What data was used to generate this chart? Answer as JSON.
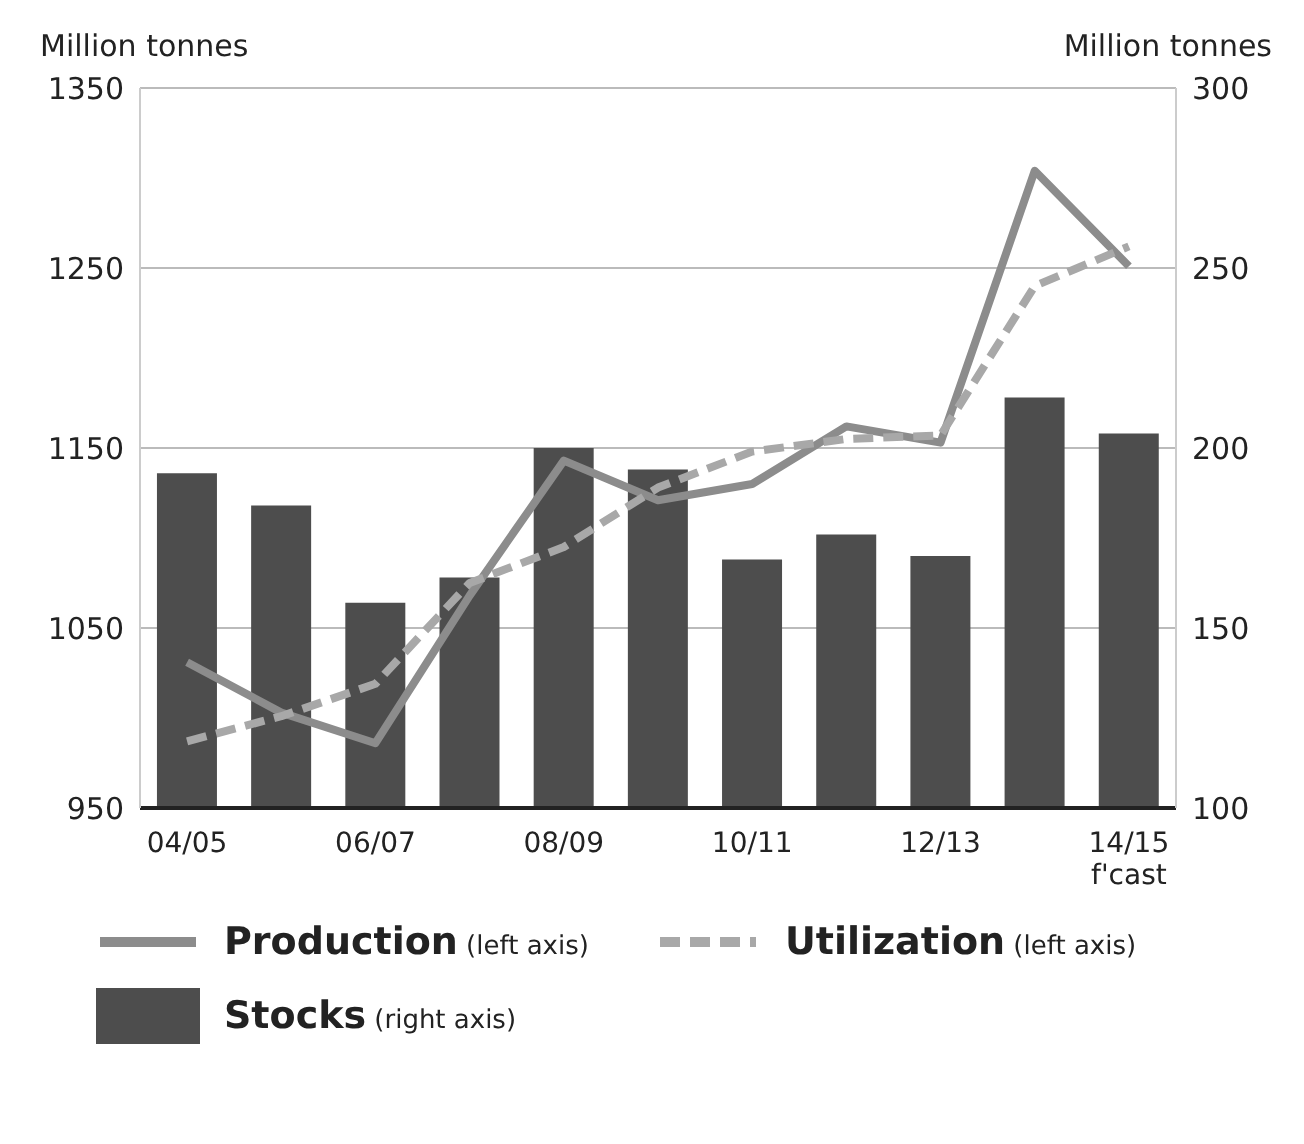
{
  "chart_data": {
    "type": "bar",
    "ylabel": "Million tonnes",
    "y2label": "Million tonnes",
    "categories": [
      "04/05",
      null,
      "06/07",
      null,
      "08/09",
      null,
      "10/11",
      null,
      "12/13",
      null,
      "14/15\nf'cast"
    ],
    "series": [
      {
        "name": "Production (left axis)",
        "type": "line",
        "axis": "y",
        "color": "#8c8c8c",
        "line_style": "solid",
        "values": [
          1031,
          1003,
          986,
          1068,
          1143,
          1121,
          1130,
          1162,
          1153,
          1304,
          1251
        ]
      },
      {
        "name": "Utilization (left axis)",
        "type": "line",
        "axis": "y",
        "color": "#a8a8a8",
        "line_style": "dashed",
        "values": [
          987,
          1001,
          1019,
          1075,
          1095,
          1128,
          1148,
          1155,
          1157,
          1240,
          1262
        ]
      },
      {
        "name": "Stocks (right axis)",
        "axis": "y2",
        "color": "#4d4d4d",
        "values": [
          193,
          184,
          157,
          164,
          200,
          194,
          169,
          176,
          170,
          214,
          204
        ]
      }
    ],
    "ylim": [
      950,
      1350
    ],
    "yticks": [
      950,
      1050,
      1150,
      1250,
      1350
    ],
    "y2lim": [
      100,
      300
    ],
    "y2ticks": [
      100,
      150,
      200,
      250,
      300
    ],
    "grid": "y",
    "legend": "bottom",
    "marker": "none"
  }
}
